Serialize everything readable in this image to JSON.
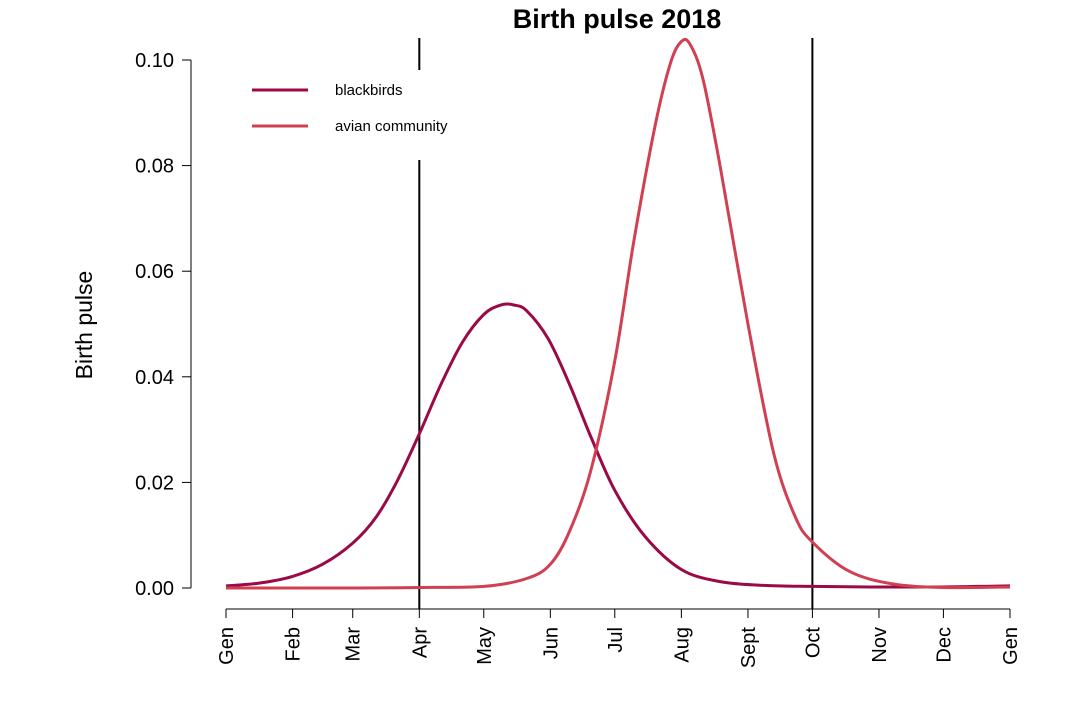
{
  "chart_data": {
    "type": "line",
    "title": "Birth pulse 2018",
    "xlabel": "",
    "ylabel": "Birth pulse",
    "x_ticks": [
      "Gen",
      "Feb",
      "Mar",
      "Apr",
      "May",
      "Jun",
      "Jul",
      "Aug",
      "Sept",
      "Oct",
      "Nov",
      "Dec",
      "Gen"
    ],
    "x_tick_days": [
      0,
      31,
      59,
      90,
      120,
      151,
      181,
      212,
      243,
      273,
      304,
      334,
      365
    ],
    "xlim": [
      0,
      365
    ],
    "y_ticks": [
      "0.00",
      "0.02",
      "0.04",
      "0.06",
      "0.08",
      "0.10"
    ],
    "ylim": [
      0,
      0.1
    ],
    "vertical_lines_x": [
      90,
      273
    ],
    "legend": {
      "position": "top-left"
    },
    "series": [
      {
        "name": "blackbirds",
        "color": "#9B0A46",
        "x": [
          0,
          15,
          31,
          45,
          59,
          70,
          80,
          90,
          100,
          110,
          120,
          128,
          134,
          140,
          150,
          160,
          170,
          181,
          195,
          212,
          230,
          250,
          273,
          300,
          330,
          350,
          365
        ],
        "y": [
          0.0004,
          0.0009,
          0.0022,
          0.0045,
          0.0085,
          0.0135,
          0.0205,
          0.0292,
          0.0385,
          0.0465,
          0.0518,
          0.0536,
          0.0536,
          0.0525,
          0.0472,
          0.0385,
          0.0285,
          0.0185,
          0.0098,
          0.0035,
          0.0012,
          0.0005,
          0.0003,
          0.0002,
          0.0002,
          0.0003,
          0.0004
        ]
      },
      {
        "name": "avian community",
        "color": "#D04052",
        "x": [
          0,
          60,
          90,
          120,
          140,
          151,
          160,
          170,
          181,
          190,
          200,
          207,
          212,
          216,
          222,
          230,
          243,
          255,
          265,
          273,
          290,
          310,
          334,
          365
        ],
        "y": [
          0,
          0,
          0.0001,
          0.0003,
          0.0018,
          0.0045,
          0.0108,
          0.0225,
          0.043,
          0.066,
          0.088,
          0.0995,
          0.1035,
          0.103,
          0.0965,
          0.08,
          0.05,
          0.0255,
          0.0135,
          0.0087,
          0.0032,
          0.0008,
          0.0001,
          0.0002
        ]
      }
    ]
  }
}
